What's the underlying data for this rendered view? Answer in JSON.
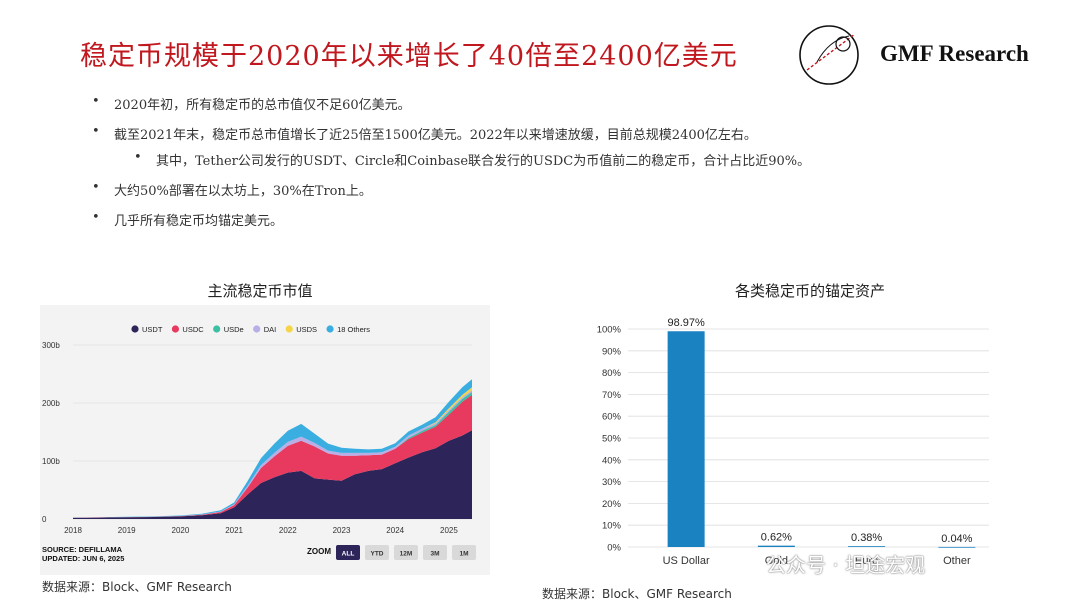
{
  "header": {
    "title": "稳定币规模于2020年以来增长了40倍至2400亿美元",
    "brand": "GMF Research"
  },
  "bullets": [
    {
      "text": "2020年初，所有稳定币的总市值仅不足60亿美元。",
      "level": 1
    },
    {
      "text": "截至2021年末，稳定币总市值增长了近25倍至1500亿美元。2022年以来增速放缓，目前总规模2400亿左右。",
      "level": 1
    },
    {
      "text": "其中，Tether公司发行的USDT、Circle和Coinbase联合发行的USDC为币值前二的稳定币，合计占比近90%。",
      "level": 2
    },
    {
      "text": "大约50%部署在以太坊上，30%在Tron上。",
      "level": 1
    },
    {
      "text": "几乎所有稳定币均锚定美元。",
      "level": 1
    }
  ],
  "bullet_glyph": "•",
  "left_chart": {
    "heading": "主流稳定币市值",
    "source_line1": "SOURCE: DEFILLAMA",
    "source_line2": "UPDATED: JUN 6, 2025",
    "zoom_label": "ZOOM",
    "zoom_buttons": [
      "ALL",
      "YTD",
      "12M",
      "3M",
      "1M"
    ],
    "zoom_selected": "ALL",
    "footer": "数据来源：Block、GMF Research"
  },
  "right_chart": {
    "heading": "各类稳定币的锚定资产",
    "footer": "数据来源：Block、GMF Research"
  },
  "watermark": "公众号 · 坦途宏观",
  "colors": {
    "title_red": "#c0181e",
    "usdt": "#2d2459",
    "usdc": "#e8395e",
    "usde": "#3cbfa3",
    "dai": "#b9aee6",
    "usds": "#f5d547",
    "others": "#3aaee0",
    "bar_blue": "#1b82c2"
  },
  "chart_data": [
    {
      "type": "area",
      "stacked": true,
      "title": "",
      "x_ticks": [
        "2018",
        "2019",
        "2020",
        "2021",
        "2022",
        "2023",
        "2024",
        "2025"
      ],
      "y_ticks": [
        "0",
        "100b",
        "200b",
        "300b"
      ],
      "ylim": [
        0,
        300
      ],
      "y_unit": "b",
      "legend": [
        "USDT",
        "USDC",
        "USDe",
        "DAI",
        "USDS",
        "18 Others"
      ],
      "legend_position": "top",
      "x": [
        2018.0,
        2018.5,
        2019.0,
        2019.5,
        2020.0,
        2020.4,
        2020.75,
        2021.0,
        2021.25,
        2021.5,
        2021.75,
        2022.0,
        2022.25,
        2022.5,
        2022.75,
        2023.0,
        2023.25,
        2023.5,
        2023.75,
        2024.0,
        2024.25,
        2024.5,
        2024.75,
        2025.0,
        2025.25,
        2025.43
      ],
      "series": [
        {
          "name": "USDT",
          "values": [
            2,
            2.5,
            3,
            3.5,
            4.5,
            6.5,
            10,
            20,
            42,
            62,
            72,
            80,
            83,
            70,
            68,
            66,
            77,
            83,
            86,
            96,
            106,
            115,
            122,
            135,
            144,
            153
          ]
        },
        {
          "name": "USDC",
          "values": [
            0,
            0.2,
            0.3,
            0.5,
            0.5,
            1,
            2,
            4,
            12,
            26,
            36,
            46,
            52,
            55,
            45,
            43,
            32,
            27,
            25,
            25,
            32,
            34,
            37,
            45,
            58,
            61
          ]
        },
        {
          "name": "USDe",
          "values": [
            0,
            0,
            0,
            0,
            0,
            0,
            0,
            0,
            0,
            0,
            0,
            0,
            0,
            0,
            0,
            0,
            0,
            0,
            0,
            0,
            2,
            3,
            3,
            5,
            5,
            5
          ]
        },
        {
          "name": "DAI",
          "values": [
            0,
            0,
            0,
            0,
            0.1,
            0.2,
            1,
            1.5,
            3,
            5,
            6,
            7,
            7,
            6,
            5,
            5,
            5,
            4,
            4,
            3.5,
            4,
            3.5,
            3,
            3,
            3,
            3
          ]
        },
        {
          "name": "USDS",
          "values": [
            0,
            0,
            0,
            0,
            0,
            0,
            0,
            0,
            0,
            0,
            0,
            0,
            0,
            0,
            0,
            0,
            0,
            0,
            0,
            0,
            0,
            0,
            1.5,
            3,
            4,
            5
          ]
        },
        {
          "name": "18 Others",
          "values": [
            0.2,
            0.3,
            0.5,
            0.5,
            1,
            1.5,
            2,
            3,
            8,
            12,
            16,
            19,
            22,
            16,
            12,
            9,
            7,
            6,
            6,
            6,
            7,
            7,
            9,
            11,
            13,
            14
          ]
        }
      ]
    },
    {
      "type": "bar",
      "title": "",
      "categories": [
        "US Dollar",
        "Gold",
        "Euro",
        "Other"
      ],
      "values": [
        98.97,
        0.62,
        0.38,
        0.04
      ],
      "data_labels": [
        "98.97%",
        "0.62%",
        "0.38%",
        "0.04%"
      ],
      "y_ticks": [
        "0%",
        "10%",
        "20%",
        "30%",
        "40%",
        "50%",
        "60%",
        "70%",
        "80%",
        "90%",
        "100%"
      ],
      "ylim": [
        0,
        100
      ],
      "grid": true
    }
  ]
}
